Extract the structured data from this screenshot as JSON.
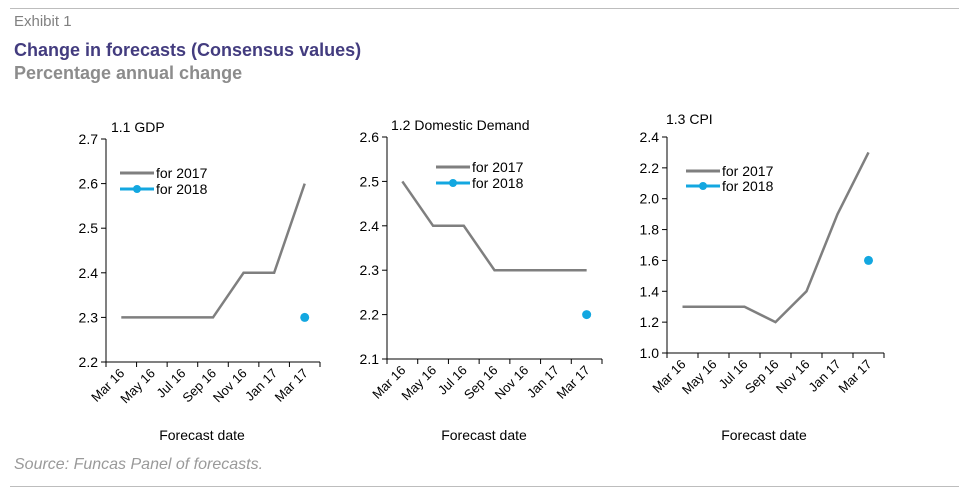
{
  "header": {
    "exhibit": "Exhibit 1",
    "title": "Change in forecasts (Consensus values)",
    "subtitle": "Percentage annual change"
  },
  "footer": {
    "source": "Source: Funcas Panel of forecasts."
  },
  "colors": {
    "series_2017": "#7f7f7f",
    "series_2018": "#13a7e0",
    "title": "#433c7f",
    "subtitle": "#8c8c8c"
  },
  "chart_data": [
    {
      "type": "line",
      "title": "1.1 GDP",
      "xlabel": "Forecast date",
      "ylabel": "",
      "x": [
        "Mar 16",
        "May 16",
        "Jul 16",
        "Sep 16",
        "Nov 16",
        "Jan 17",
        "Mar 17"
      ],
      "ylim": [
        2.2,
        2.7
      ],
      "yticks": [
        "2.2",
        "2.3",
        "2.4",
        "2.5",
        "2.6",
        "2.7"
      ],
      "series": [
        {
          "name": "for 2017",
          "values": [
            2.3,
            2.3,
            2.3,
            2.3,
            2.4,
            2.4,
            2.6
          ]
        },
        {
          "name": "for 2018",
          "values": [
            null,
            null,
            null,
            null,
            null,
            null,
            2.3
          ]
        }
      ],
      "grid": false,
      "legend": "top-left"
    },
    {
      "type": "line",
      "title": "1.2 Domestic Demand",
      "xlabel": "Forecast date",
      "ylabel": "",
      "x": [
        "Mar 16",
        "May 16",
        "Jul 16",
        "Sep 16",
        "Nov 16",
        "Jan 17",
        "Mar 17"
      ],
      "ylim": [
        2.1,
        2.6
      ],
      "yticks": [
        "2.1",
        "2.2",
        "2.3",
        "2.4",
        "2.5",
        "2.6"
      ],
      "series": [
        {
          "name": "for 2017",
          "values": [
            2.5,
            2.4,
            2.4,
            2.3,
            2.3,
            2.3,
            2.3
          ]
        },
        {
          "name": "for 2018",
          "values": [
            null,
            null,
            null,
            null,
            null,
            null,
            2.2
          ]
        }
      ],
      "grid": false,
      "legend": "top-left"
    },
    {
      "type": "line",
      "title": "1.3 CPI",
      "xlabel": "Forecast date",
      "ylabel": "",
      "x": [
        "Mar 16",
        "May 16",
        "Jul 16",
        "Sep 16",
        "Nov 16",
        "Jan 17",
        "Mar 17"
      ],
      "ylim": [
        1.0,
        2.4
      ],
      "yticks": [
        "1.0",
        "1.2",
        "1.4",
        "1.6",
        "1.8",
        "2.0",
        "2.2",
        "2.4"
      ],
      "series": [
        {
          "name": "for 2017",
          "values": [
            1.3,
            1.3,
            1.3,
            1.2,
            1.4,
            1.9,
            2.3
          ]
        },
        {
          "name": "for 2018",
          "values": [
            null,
            null,
            null,
            null,
            null,
            null,
            1.6
          ]
        }
      ],
      "grid": false,
      "legend": "top-left"
    }
  ]
}
